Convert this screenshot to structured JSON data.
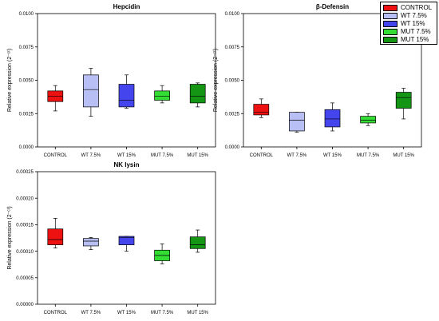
{
  "legend": {
    "items": [
      {
        "label": "CONTROL",
        "color": "#ee1111"
      },
      {
        "label": "WT 7.5%",
        "color": "#b8bff4"
      },
      {
        "label": "WT 15%",
        "color": "#4545ee"
      },
      {
        "label": "MUT 7.5%",
        "color": "#33dd33"
      },
      {
        "label": "MUT 15%",
        "color": "#149614"
      }
    ]
  },
  "chart_data": [
    {
      "type": "box",
      "title": "Hepcidin",
      "ylabel": "Relative expression (2⁻ᶜᵗ)",
      "ylim": [
        0,
        0.01
      ],
      "yticks": [
        "0.0000",
        "0.0025",
        "0.0050",
        "0.0075",
        "0.0100"
      ],
      "categories": [
        "CONTROL",
        "WT 7.5%",
        "WT 15%",
        "MUT 7.5%",
        "MUT 15%"
      ],
      "boxes": [
        {
          "min": 0.0027,
          "q1": 0.0034,
          "median": 0.0038,
          "q3": 0.0042,
          "max": 0.0046
        },
        {
          "min": 0.0023,
          "q1": 0.003,
          "median": 0.0043,
          "q3": 0.0054,
          "max": 0.0059
        },
        {
          "min": 0.0029,
          "q1": 0.003,
          "median": 0.0035,
          "q3": 0.0047,
          "max": 0.0054
        },
        {
          "min": 0.0033,
          "q1": 0.0035,
          "median": 0.0038,
          "q3": 0.0042,
          "max": 0.0046
        },
        {
          "min": 0.003,
          "q1": 0.0033,
          "median": 0.0038,
          "q3": 0.0047,
          "max": 0.0048
        }
      ]
    },
    {
      "type": "box",
      "title": "β-Defensin",
      "ylabel": "Relative expression (2⁻ᶜᵗ)",
      "ylim": [
        0,
        0.01
      ],
      "yticks": [
        "0.0000",
        "0.0025",
        "0.0050",
        "0.0075",
        "0.0100"
      ],
      "categories": [
        "CONTROL",
        "WT 7.5%",
        "WT 15%",
        "MUT 7.5%",
        "MUT 15%"
      ],
      "boxes": [
        {
          "min": 0.0022,
          "q1": 0.0024,
          "median": 0.0026,
          "q3": 0.0032,
          "max": 0.0036
        },
        {
          "min": 0.0011,
          "q1": 0.0012,
          "median": 0.002,
          "q3": 0.0026,
          "max": 0.0026
        },
        {
          "min": 0.0012,
          "q1": 0.0015,
          "median": 0.0021,
          "q3": 0.0028,
          "max": 0.0033
        },
        {
          "min": 0.0016,
          "q1": 0.0018,
          "median": 0.002,
          "q3": 0.0023,
          "max": 0.0025
        },
        {
          "min": 0.0021,
          "q1": 0.0029,
          "median": 0.0037,
          "q3": 0.0041,
          "max": 0.0044
        }
      ]
    },
    {
      "type": "box",
      "title": "NK lysin",
      "ylabel": "Relative expression (2⁻ᶜᵗ)",
      "ylim": [
        0,
        0.00025
      ],
      "yticks": [
        "0.00000",
        "0.00005",
        "0.00010",
        "0.00015",
        "0.00020",
        "0.00025"
      ],
      "categories": [
        "CONTROL",
        "WT 7.5%",
        "WT 15%",
        "MUT 7.5%",
        "MUT 15%"
      ],
      "boxes": [
        {
          "min": 0.000106,
          "q1": 0.000112,
          "median": 0.000122,
          "q3": 0.000142,
          "max": 0.000162
        },
        {
          "min": 0.000103,
          "q1": 0.00011,
          "median": 0.000119,
          "q3": 0.000124,
          "max": 0.000126
        },
        {
          "min": 0.0001,
          "q1": 0.000112,
          "median": 0.000126,
          "q3": 0.000128,
          "max": 0.000128
        },
        {
          "min": 7.6e-05,
          "q1": 8.2e-05,
          "median": 9.2e-05,
          "q3": 0.000102,
          "max": 0.000114
        },
        {
          "min": 9.8e-05,
          "q1": 0.000105,
          "median": 0.000112,
          "q3": 0.000127,
          "max": 0.00014
        }
      ]
    }
  ]
}
